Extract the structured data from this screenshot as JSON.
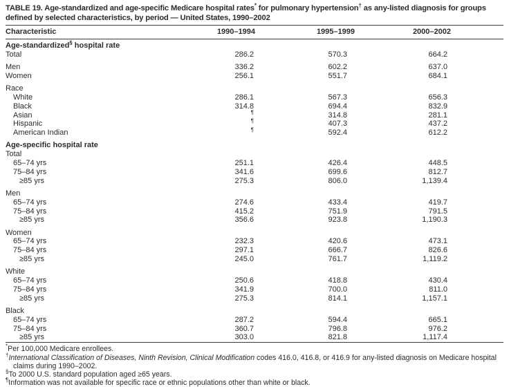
{
  "colors": {
    "text": "#2b2b2b",
    "rule": "#3a3a3a",
    "background": "#ffffff"
  },
  "title_parts": [
    {
      "t": "TABLE 19. Age-standardized and age-specific Medicare hospital rates"
    },
    {
      "t": "*",
      "sup": true
    },
    {
      "t": " for pulmonary hypertension"
    },
    {
      "t": "†",
      "sup": true
    },
    {
      "t": " as any-listed diagnosis for groups defined by selected characteristics, by period — United States, 1990–2002"
    }
  ],
  "columns": {
    "characteristic": "Characteristic",
    "periods": [
      "1990–1994",
      "1995–1999",
      "2000–2002"
    ]
  },
  "rows": [
    {
      "type": "section",
      "parts": [
        {
          "t": "Age-standardized"
        },
        {
          "t": "§",
          "sup": true
        },
        {
          "t": " hospital rate"
        }
      ]
    },
    {
      "type": "data",
      "label": "Total",
      "indent": 0,
      "values": [
        "286.2",
        "570.3",
        "664.2"
      ]
    },
    {
      "type": "data",
      "label": "Men",
      "indent": 0,
      "gap": true,
      "values": [
        "336.2",
        "602.2",
        "637.0"
      ]
    },
    {
      "type": "data",
      "label": "Women",
      "indent": 0,
      "values": [
        "256.1",
        "551.7",
        "684.1"
      ]
    },
    {
      "type": "data",
      "label": "Race",
      "indent": 0,
      "gap": true,
      "values": [
        "",
        "",
        ""
      ]
    },
    {
      "type": "data",
      "label": "White",
      "indent": 1,
      "values": [
        "286.1",
        "567.3",
        "656.3"
      ]
    },
    {
      "type": "data",
      "label": "Black",
      "indent": 1,
      "values": [
        "314.8",
        "694.4",
        "832.9"
      ]
    },
    {
      "type": "data",
      "label": "Asian",
      "indent": 1,
      "values": [
        "¶",
        "314.8",
        "281.1"
      ]
    },
    {
      "type": "data",
      "label": "Hispanic",
      "indent": 1,
      "values": [
        "¶",
        "407.3",
        "437.2"
      ]
    },
    {
      "type": "data",
      "label": "American Indian",
      "indent": 1,
      "values": [
        "¶",
        "592.4",
        "612.2"
      ]
    },
    {
      "type": "section",
      "gap": true,
      "parts": [
        {
          "t": "Age-specific hospital rate"
        }
      ]
    },
    {
      "type": "data",
      "label": "Total",
      "indent": 0,
      "values": [
        "",
        "",
        ""
      ]
    },
    {
      "type": "data",
      "label": "65–74 yrs",
      "indent": 1,
      "values": [
        "251.1",
        "426.4",
        "448.5"
      ]
    },
    {
      "type": "data",
      "label": "75–84 yrs",
      "indent": 1,
      "values": [
        "341.6",
        "699.6",
        "812.7"
      ]
    },
    {
      "type": "data",
      "label": "≥85 yrs",
      "indent": 2,
      "values": [
        "275.3",
        "806.0",
        "1,139.4"
      ]
    },
    {
      "type": "data",
      "label": "Men",
      "indent": 0,
      "gap": true,
      "values": [
        "",
        "",
        ""
      ]
    },
    {
      "type": "data",
      "label": "65–74 yrs",
      "indent": 1,
      "values": [
        "274.6",
        "433.4",
        "419.7"
      ]
    },
    {
      "type": "data",
      "label": "75–84 yrs",
      "indent": 1,
      "values": [
        "415.2",
        "751.9",
        "791.5"
      ]
    },
    {
      "type": "data",
      "label": "≥85 yrs",
      "indent": 2,
      "values": [
        "356.6",
        "923.8",
        "1,190.3"
      ]
    },
    {
      "type": "data",
      "label": "Women",
      "indent": 0,
      "gap": true,
      "values": [
        "",
        "",
        ""
      ]
    },
    {
      "type": "data",
      "label": "65–74 yrs",
      "indent": 1,
      "values": [
        "232.3",
        "420.6",
        "473.1"
      ]
    },
    {
      "type": "data",
      "label": "75–84 yrs",
      "indent": 1,
      "values": [
        "297.1",
        "666.7",
        "826.6"
      ]
    },
    {
      "type": "data",
      "label": "≥85 yrs",
      "indent": 2,
      "values": [
        "245.0",
        "761.7",
        "1,119.2"
      ]
    },
    {
      "type": "data",
      "label": "White",
      "indent": 0,
      "gap": true,
      "values": [
        "",
        "",
        ""
      ]
    },
    {
      "type": "data",
      "label": "65–74 yrs",
      "indent": 1,
      "values": [
        "250.6",
        "418.8",
        "430.4"
      ]
    },
    {
      "type": "data",
      "label": "75–84 yrs",
      "indent": 1,
      "values": [
        "341.9",
        "700.0",
        "811.0"
      ]
    },
    {
      "type": "data",
      "label": "≥85 yrs",
      "indent": 2,
      "values": [
        "275.3",
        "814.1",
        "1,157.1"
      ]
    },
    {
      "type": "data",
      "label": "Black",
      "indent": 0,
      "gap": true,
      "values": [
        "",
        "",
        ""
      ]
    },
    {
      "type": "data",
      "label": "65–74 yrs",
      "indent": 1,
      "values": [
        "287.2",
        "594.4",
        "665.1"
      ]
    },
    {
      "type": "data",
      "label": "75–84 yrs",
      "indent": 1,
      "values": [
        "360.7",
        "796.8",
        "976.2"
      ]
    },
    {
      "type": "data",
      "label": "≥85 yrs",
      "indent": 2,
      "values": [
        "303.0",
        "821.8",
        "1,117.4"
      ]
    }
  ],
  "footnotes": [
    {
      "marker": "*",
      "parts": [
        {
          "t": "Per 100,000 Medicare enrollees."
        }
      ]
    },
    {
      "marker": "†",
      "parts": [
        {
          "t": "International Classification of Diseases, Ninth Revision, Clinical Modification",
          "italic": true
        },
        {
          "t": " codes 416.0, 416.8, or 416.9 for any-listed diagnosis on Medicare hospital claims during 1990–2002."
        }
      ]
    },
    {
      "marker": "§",
      "parts": [
        {
          "t": "To 2000 U.S. standard population aged ≥65 years."
        }
      ]
    },
    {
      "marker": "¶",
      "parts": [
        {
          "t": "Information was not available for specific race or ethnic populations other than white or black."
        }
      ]
    }
  ]
}
